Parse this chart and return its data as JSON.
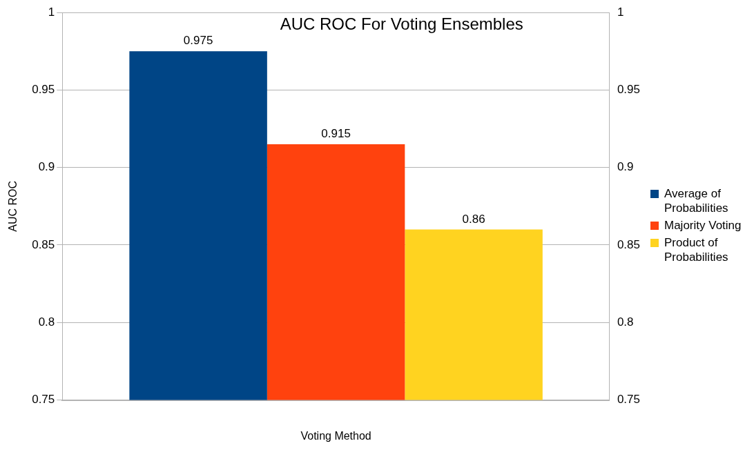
{
  "chart_data": {
    "type": "bar",
    "title": "AUC ROC For Voting Ensembles",
    "xlabel": "Voting Method",
    "ylabel": "AUC ROC",
    "categories": [
      null
    ],
    "series": [
      {
        "name": "Average of Probabilities",
        "color": "#004586",
        "values": [
          0.975
        ]
      },
      {
        "name": "Majority Voting",
        "color": "#ff420e",
        "values": [
          0.915
        ]
      },
      {
        "name": "Product of Probabilities",
        "color": "#ffd320",
        "values": [
          0.86
        ]
      }
    ],
    "ylim": [
      0.75,
      1
    ],
    "yticks": [
      0.75,
      0.8,
      0.85,
      0.9,
      0.95,
      1
    ],
    "y2lim": [
      0.75,
      1
    ],
    "y2ticks": [
      0.75,
      0.8,
      0.85,
      0.9,
      0.95,
      1
    ],
    "grid": "y",
    "legend": "right",
    "data_labels": true
  }
}
